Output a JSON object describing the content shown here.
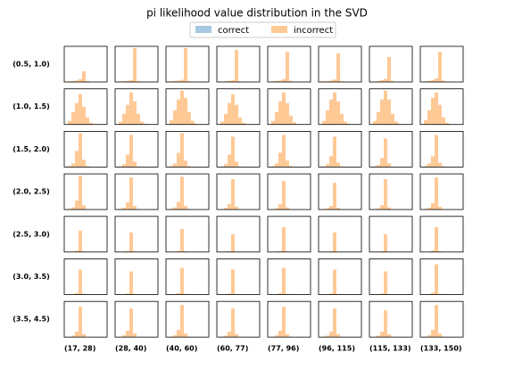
{
  "chart_data": {
    "type": "histogram-grid",
    "title": "pi likelihood value distribution in the SVD",
    "series": [
      {
        "name": "correct",
        "color": "#a6c8e0"
      },
      {
        "name": "incorrect",
        "color": "#ffc996"
      }
    ],
    "row_labels": [
      "(0.5, 1.0)",
      "(1.0, 1.5)",
      "(1.5, 2.0)",
      "(2.0, 2.5)",
      "(2.5, 3.0)",
      "(3.0, 3.5)",
      "(3.5, 4.5)"
    ],
    "col_labels": [
      "(17, 28)",
      "(28, 40)",
      "(40, 60)",
      "(60, 77)",
      "(77, 96)",
      "(96, 115)",
      "(115, 133)",
      "(133, 150)"
    ],
    "bins": [
      0,
      1,
      2,
      3,
      4,
      5,
      6,
      7,
      8,
      9,
      10,
      11,
      12
    ],
    "ylim": [
      0,
      100
    ],
    "panels": [
      [
        [
          1,
          2,
          3,
          4,
          8,
          30,
          3,
          0,
          0,
          0,
          0,
          0
        ],
        [
          1,
          2,
          2,
          3,
          5,
          95,
          2,
          0,
          0,
          0,
          0,
          0
        ],
        [
          1,
          2,
          3,
          4,
          6,
          95,
          2,
          0,
          0,
          0,
          0,
          0
        ],
        [
          1,
          1,
          2,
          3,
          5,
          90,
          2,
          0,
          0,
          0,
          0,
          0
        ],
        [
          1,
          2,
          3,
          4,
          8,
          85,
          3,
          0,
          0,
          0,
          0,
          0
        ],
        [
          1,
          2,
          2,
          4,
          7,
          80,
          2,
          0,
          0,
          0,
          0,
          0
        ],
        [
          1,
          2,
          3,
          5,
          9,
          70,
          3,
          0,
          0,
          0,
          0,
          0
        ],
        [
          1,
          2,
          3,
          5,
          10,
          85,
          4,
          0,
          0,
          0,
          0,
          0
        ]
      ],
      [
        [
          0,
          10,
          35,
          60,
          85,
          50,
          20,
          5,
          1,
          0,
          0,
          0
        ],
        [
          0,
          8,
          30,
          55,
          90,
          65,
          30,
          8,
          2,
          0,
          0,
          0
        ],
        [
          0,
          12,
          40,
          70,
          95,
          75,
          35,
          10,
          2,
          0,
          0,
          0
        ],
        [
          0,
          8,
          30,
          60,
          85,
          55,
          20,
          5,
          1,
          0,
          0,
          0
        ],
        [
          0,
          10,
          35,
          65,
          90,
          60,
          25,
          6,
          1,
          0,
          0,
          0
        ],
        [
          0,
          10,
          40,
          70,
          90,
          65,
          30,
          8,
          2,
          0,
          0,
          0
        ],
        [
          0,
          10,
          35,
          70,
          95,
          70,
          30,
          8,
          2,
          0,
          0,
          0
        ],
        [
          0,
          12,
          40,
          75,
          90,
          55,
          20,
          5,
          1,
          0,
          0,
          0
        ]
      ],
      [
        [
          0,
          3,
          10,
          45,
          95,
          20,
          3,
          0,
          0,
          0,
          0,
          0
        ],
        [
          0,
          2,
          8,
          35,
          90,
          15,
          2,
          0,
          0,
          0,
          0,
          0
        ],
        [
          0,
          3,
          10,
          40,
          95,
          18,
          3,
          0,
          0,
          0,
          0,
          0
        ],
        [
          0,
          2,
          8,
          35,
          85,
          15,
          2,
          0,
          0,
          0,
          0,
          0
        ],
        [
          0,
          3,
          10,
          40,
          90,
          18,
          3,
          0,
          0,
          0,
          0,
          0
        ],
        [
          0,
          2,
          8,
          30,
          85,
          12,
          2,
          0,
          0,
          0,
          0,
          0
        ],
        [
          0,
          2,
          6,
          25,
          80,
          10,
          1,
          0,
          0,
          0,
          0,
          0
        ],
        [
          0,
          3,
          10,
          30,
          90,
          12,
          2,
          0,
          0,
          0,
          0,
          0
        ]
      ],
      [
        [
          0,
          2,
          6,
          25,
          95,
          12,
          1,
          0,
          0,
          0,
          0,
          0
        ],
        [
          0,
          2,
          5,
          20,
          90,
          10,
          1,
          0,
          0,
          0,
          0,
          0
        ],
        [
          0,
          2,
          6,
          22,
          92,
          10,
          1,
          0,
          0,
          0,
          0,
          0
        ],
        [
          0,
          1,
          4,
          15,
          85,
          8,
          1,
          0,
          0,
          0,
          0,
          0
        ],
        [
          0,
          1,
          4,
          15,
          80,
          6,
          1,
          0,
          0,
          0,
          0,
          0
        ],
        [
          0,
          1,
          3,
          10,
          75,
          5,
          0,
          0,
          0,
          0,
          0,
          0
        ],
        [
          0,
          1,
          3,
          12,
          85,
          6,
          0,
          0,
          0,
          0,
          0,
          0
        ],
        [
          0,
          2,
          5,
          18,
          90,
          8,
          1,
          0,
          0,
          0,
          0,
          0
        ]
      ],
      [
        [
          0,
          0,
          1,
          4,
          60,
          2,
          0,
          0,
          0,
          0,
          0,
          0
        ],
        [
          0,
          0,
          1,
          3,
          55,
          2,
          0,
          0,
          0,
          0,
          0,
          0
        ],
        [
          0,
          0,
          1,
          3,
          65,
          2,
          0,
          0,
          0,
          0,
          0,
          0
        ],
        [
          0,
          0,
          1,
          2,
          50,
          1,
          0,
          0,
          0,
          0,
          0,
          0
        ],
        [
          0,
          0,
          1,
          3,
          70,
          2,
          0,
          0,
          0,
          0,
          0,
          0
        ],
        [
          0,
          0,
          1,
          2,
          55,
          1,
          0,
          0,
          0,
          0,
          0,
          0
        ],
        [
          0,
          0,
          1,
          2,
          50,
          1,
          0,
          0,
          0,
          0,
          0,
          0
        ],
        [
          0,
          0,
          1,
          4,
          70,
          2,
          0,
          0,
          0,
          0,
          0,
          0
        ]
      ],
      [
        [
          0,
          0,
          1,
          4,
          70,
          2,
          0,
          0,
          0,
          0,
          0,
          0
        ],
        [
          0,
          0,
          1,
          3,
          65,
          2,
          0,
          0,
          0,
          0,
          0,
          0
        ],
        [
          0,
          0,
          1,
          4,
          75,
          2,
          0,
          0,
          0,
          0,
          0,
          0
        ],
        [
          0,
          0,
          1,
          3,
          70,
          1,
          0,
          0,
          0,
          0,
          0,
          0
        ],
        [
          0,
          0,
          1,
          4,
          75,
          2,
          0,
          0,
          0,
          0,
          0,
          0
        ],
        [
          0,
          0,
          1,
          3,
          70,
          1,
          0,
          0,
          0,
          0,
          0,
          0
        ],
        [
          0,
          0,
          1,
          3,
          65,
          1,
          0,
          0,
          0,
          0,
          0,
          0
        ],
        [
          0,
          0,
          1,
          5,
          85,
          2,
          0,
          0,
          0,
          0,
          0,
          0
        ]
      ],
      [
        [
          0,
          1,
          4,
          15,
          85,
          8,
          1,
          0,
          0,
          0,
          0,
          0
        ],
        [
          0,
          1,
          5,
          18,
          80,
          10,
          1,
          0,
          0,
          0,
          0,
          0
        ],
        [
          0,
          1,
          5,
          20,
          90,
          10,
          1,
          0,
          0,
          0,
          0,
          0
        ],
        [
          0,
          1,
          4,
          15,
          80,
          8,
          1,
          0,
          0,
          0,
          0,
          0
        ],
        [
          0,
          1,
          5,
          18,
          85,
          8,
          1,
          0,
          0,
          0,
          0,
          0
        ],
        [
          0,
          1,
          4,
          15,
          80,
          8,
          1,
          0,
          0,
          0,
          0,
          0
        ],
        [
          0,
          1,
          4,
          15,
          75,
          8,
          1,
          0,
          0,
          0,
          0,
          0
        ],
        [
          0,
          1,
          5,
          20,
          90,
          10,
          1,
          0,
          0,
          0,
          0,
          0
        ]
      ]
    ]
  }
}
